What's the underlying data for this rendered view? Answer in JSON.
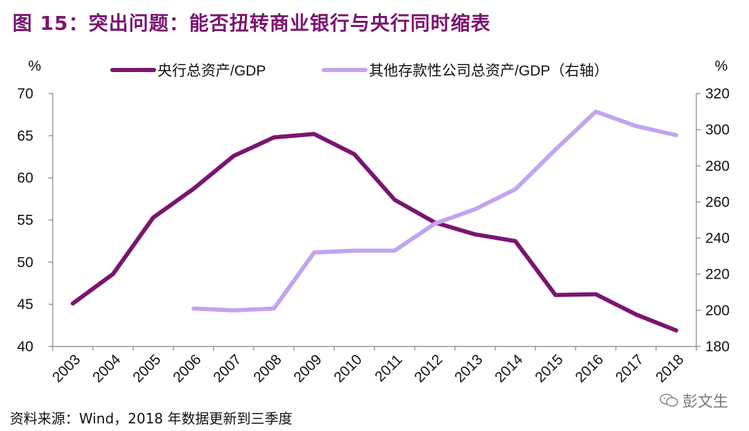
{
  "title": "图 15：突出问题：能否扭转商业银行与央行同时缩表",
  "source": "资料来源：Wind，2018 年数据更新到三季度",
  "watermark": "彭文生",
  "colors": {
    "primary": "#7a1570",
    "secondary": "#c3a3ee",
    "axis": "#808080",
    "text": "#111111"
  },
  "chart_data": {
    "type": "line",
    "x": [
      "2003",
      "2004",
      "2005",
      "2006",
      "2007",
      "2008",
      "2009",
      "2010",
      "2011",
      "2012",
      "2013",
      "2014",
      "2015",
      "2016",
      "2017",
      "2018"
    ],
    "series": [
      {
        "name": "央行总资产/GDP",
        "axis": "left",
        "values": [
          45.1,
          48.6,
          55.3,
          58.7,
          62.6,
          64.8,
          65.2,
          62.8,
          57.4,
          54.7,
          53.3,
          52.5,
          46.1,
          46.2,
          43.8,
          41.9
        ]
      },
      {
        "name": "其他存款性公司总资产/GDP（右轴）",
        "axis": "right",
        "values": [
          null,
          null,
          null,
          201,
          200,
          201,
          232,
          233,
          233,
          248,
          256,
          267,
          289,
          310,
          302,
          297
        ]
      }
    ],
    "y_left": {
      "label": "%",
      "ylim": [
        40,
        70
      ],
      "ticks": [
        40,
        45,
        50,
        55,
        60,
        65,
        70
      ]
    },
    "y_right": {
      "label": "%",
      "ylim": [
        180,
        320
      ],
      "ticks": [
        180,
        200,
        220,
        240,
        260,
        280,
        300,
        320
      ]
    },
    "legend_position": "top"
  }
}
